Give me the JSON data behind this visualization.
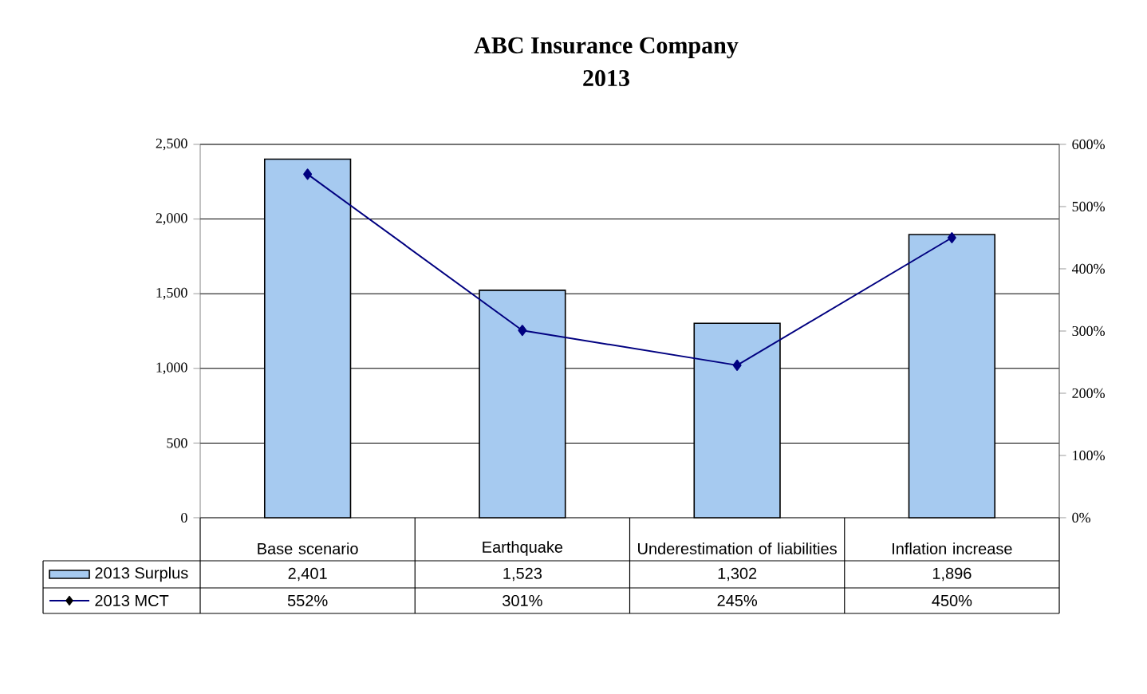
{
  "chart_data": {
    "type": "bar",
    "title": "ABC Insurance Company",
    "subtitle": "2013",
    "categories": [
      "Base scenario",
      "Earthquake",
      "Underestimation of liabilities",
      "Inflation increase"
    ],
    "series": [
      {
        "name": "2013 Surplus",
        "color": "#a6caf0",
        "values": [
          2401,
          1523,
          1302,
          1896
        ],
        "value_labels": [
          "2,401",
          "1,523",
          "1,302",
          "1,896"
        ]
      },
      {
        "name": "2013 MCT",
        "type": "line",
        "axis": "y2",
        "color": "#000080",
        "marker": "diamond",
        "values": [
          552,
          301,
          245,
          450
        ],
        "value_labels": [
          "552%",
          "301%",
          "245%",
          "450%"
        ]
      }
    ],
    "ylim": [
      0,
      2500
    ],
    "yticks": [
      0,
      500,
      {
        "value": 1000,
        "label": "1,000"
      },
      {
        "value": 1500,
        "label": "1,500"
      },
      {
        "value": 2000,
        "label": "2,000"
      },
      {
        "value": 2500,
        "label": "2,500"
      }
    ],
    "y2lim": [
      0,
      600
    ],
    "y2ticks": [
      {
        "value": 0,
        "label": "0%"
      },
      {
        "value": 100,
        "label": "100%"
      },
      {
        "value": 200,
        "label": "200%"
      },
      {
        "value": 300,
        "label": "300%"
      },
      {
        "value": 400,
        "label": "400%"
      },
      {
        "value": 500,
        "label": "500%"
      },
      {
        "value": 600,
        "label": "600%"
      }
    ],
    "grid": "y",
    "legend": "bottom",
    "data_labels": true
  }
}
